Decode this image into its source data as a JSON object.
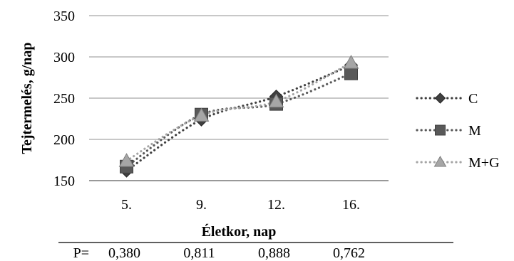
{
  "chart_data": {
    "type": "line",
    "xlabel": "Életkor, nap",
    "ylabel": "Tejtermelés, g/nap",
    "categories": [
      "5.",
      "9.",
      "12.",
      "16."
    ],
    "ylim": [
      150,
      350
    ],
    "yticks": [
      "150",
      "200",
      "250",
      "300",
      "350"
    ],
    "grid": "horizontal",
    "legend_position": "right",
    "line_style": "dotted",
    "series": [
      {
        "name": "C",
        "marker": "diamond",
        "color": "#404040",
        "values": [
          162,
          224,
          252,
          290
        ]
      },
      {
        "name": "M",
        "marker": "square",
        "color": "#595959",
        "values": [
          167,
          230,
          243,
          280
        ]
      },
      {
        "name": "M+G",
        "marker": "triangle",
        "color": "#a6a6a6",
        "values": [
          174,
          229,
          246,
          293
        ]
      }
    ]
  },
  "p_row": {
    "label": "P=",
    "values": [
      "0,380",
      "0,811",
      "0,888",
      "0,762"
    ]
  }
}
